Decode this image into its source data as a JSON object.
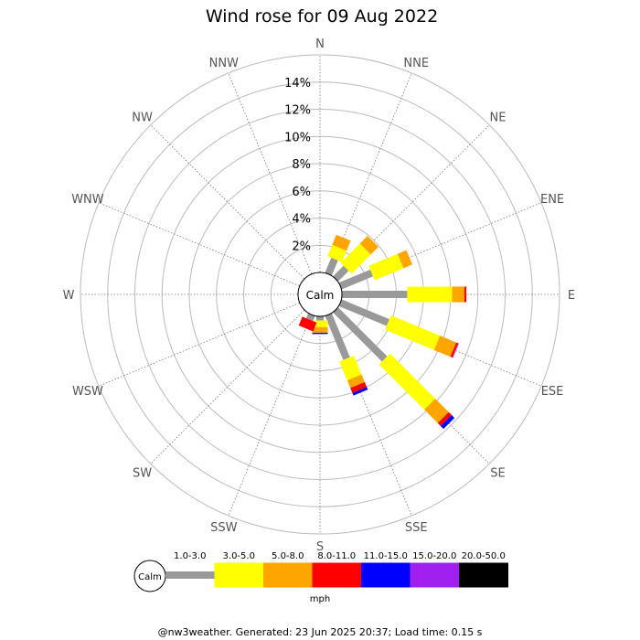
{
  "chart_data": {
    "type": "windrose",
    "title": "Wind rose for 09 Aug 2022",
    "directions": [
      "N",
      "NNE",
      "NE",
      "ENE",
      "E",
      "ESE",
      "SE",
      "SSE",
      "S",
      "SSW",
      "SW",
      "WSW",
      "W",
      "WNW",
      "NW",
      "NNW"
    ],
    "ring_labels": [
      "2%",
      "4%",
      "6%",
      "8%",
      "10%",
      "12%",
      "14%"
    ],
    "rmax_percent": 16,
    "center_label": "Calm",
    "bins": [
      {
        "range": "1.0-3.0",
        "color": "#999999"
      },
      {
        "range": "3.0-5.0",
        "color": "#ffff00"
      },
      {
        "range": "5.0-8.0",
        "color": "#ffa500"
      },
      {
        "range": "8.0-11.0",
        "color": "#ff0000"
      },
      {
        "range": "11.0-15.0",
        "color": "#0000ff"
      },
      {
        "range": "15.0-20.0",
        "color": "#a020f0"
      },
      {
        "range": "20.0-50.0",
        "color": "#000000"
      }
    ],
    "legend_unit": "mph",
    "series": [
      {
        "direction": "N",
        "values": [
          0,
          0,
          0,
          0,
          0,
          0,
          0
        ]
      },
      {
        "direction": "NNE",
        "values": [
          1.2,
          0.9,
          0.8,
          0,
          0,
          0,
          0
        ]
      },
      {
        "direction": "NE",
        "values": [
          1.1,
          2.0,
          0.8,
          0,
          0,
          0,
          0
        ]
      },
      {
        "direction": "ENE",
        "values": [
          2.5,
          2.3,
          0.7,
          0,
          0,
          0,
          0
        ]
      },
      {
        "direction": "E",
        "values": [
          4.8,
          3.3,
          0.9,
          0.15,
          0,
          0,
          0
        ]
      },
      {
        "direction": "ESE",
        "values": [
          3.8,
          3.9,
          1.3,
          0.15,
          0,
          0.05,
          0
        ]
      },
      {
        "direction": "SE",
        "values": [
          5.1,
          4.7,
          1.4,
          0.3,
          0.3,
          0,
          0
        ]
      },
      {
        "direction": "SSE",
        "values": [
          3.5,
          1.5,
          0.6,
          0.4,
          0.2,
          0,
          0
        ]
      },
      {
        "direction": "S",
        "values": [
          0.3,
          0.5,
          0.4,
          0,
          0.1,
          0,
          0
        ]
      },
      {
        "direction": "SSW",
        "values": [
          0.4,
          0,
          0,
          0.7,
          0,
          0,
          0
        ]
      },
      {
        "direction": "SW",
        "values": [
          0,
          0,
          0,
          0,
          0,
          0,
          0
        ]
      },
      {
        "direction": "WSW",
        "values": [
          0,
          0,
          0,
          0,
          0,
          0,
          0
        ]
      },
      {
        "direction": "W",
        "values": [
          0,
          0,
          0,
          0,
          0,
          0,
          0
        ]
      },
      {
        "direction": "WNW",
        "values": [
          0,
          0,
          0,
          0,
          0,
          0,
          0
        ]
      },
      {
        "direction": "NW",
        "values": [
          0,
          0,
          0,
          0,
          0,
          0,
          0
        ]
      },
      {
        "direction": "NNW",
        "values": [
          0,
          0,
          0,
          0,
          0,
          0,
          0
        ]
      }
    ]
  },
  "footer": "@nw3weather. Generated: 23 Jun 2025 20:37; Load time: 0.15 s"
}
